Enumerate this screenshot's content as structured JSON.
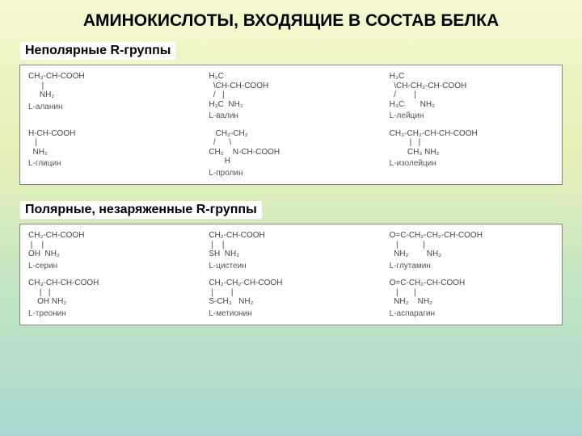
{
  "title": "АМИНОКИСЛОТЫ, ВХОДЯЩИЕ В СОСТАВ БЕЛКА",
  "section1": {
    "heading": "Неполярные R-группы",
    "row1": {
      "m1": {
        "line1": "CH₃-CH-COOH",
        "line2": "      |",
        "line3": "     NH₂",
        "label": "L-аланин"
      },
      "m2": {
        "line1": "H₃C   ",
        "line2": "  \\CH-CH-COOH",
        "line3": "  /   |",
        "line4": "H₃C  NH₂",
        "label": "L-валин"
      },
      "m3": {
        "line1": "H₃C",
        "line2": "  \\CH-CH₂-CH-COOH",
        "line3": "  /        |",
        "line4": "H₃C       NH₂",
        "label": "L-лейцин"
      }
    },
    "row2": {
      "m1": {
        "line1": "H-CH-COOH",
        "line2": "   |",
        "line3": "  NH₂",
        "label": "L-глицин"
      },
      "m2": {
        "line1": "   CH₂-CH₂",
        "line2": "  /      \\",
        "line3": "CH₂    N-CH-COOH",
        "line4": "       H",
        "label": "L-пролин"
      },
      "m3": {
        "line1": "CH₃-CH₂-CH-CH-COOH",
        "line2": "         |   |",
        "line3": "        CH₃ NH₂",
        "label": "L-изолейцин"
      }
    }
  },
  "section2": {
    "heading": "Полярные, незаряженные R-группы",
    "row1": {
      "m1": {
        "line1": "CH₂-CH-COOH",
        "line2": " |    |",
        "line3": "OH  NH₂",
        "label": "L-серин"
      },
      "m2": {
        "line1": "CH₂-CH-COOH",
        "line2": " |    |",
        "line3": "SH  NH₂",
        "label": "L-цистеин"
      },
      "m3": {
        "line1": "O=C-CH₂-CH₂-CH-COOH",
        "line2": "   |           |",
        "line3": "  NH₂        NH₂",
        "label": "L-глутамин"
      }
    },
    "row2": {
      "m1": {
        "line1": "CH₃-CH-CH-COOH",
        "line2": "     |   |",
        "line3": "    OH NH₂",
        "label": "L-треонин"
      },
      "m2": {
        "line1": "CH₂-CH₂-CH-COOH",
        "line2": " |        |",
        "line3": "S-CH₃   NH₂",
        "label": "L-метионин"
      },
      "m3": {
        "line1": "O=C-CH₂-CH-COOH",
        "line2": "   |       |",
        "line3": "  NH₂    NH₂",
        "label": "L-аспарагин"
      }
    }
  },
  "colors": {
    "bg_top": "#f5f8d0",
    "bg_bottom": "#a8d8d0",
    "text": "#000000",
    "chem_text": "#555555",
    "chem_bg": "#ffffff"
  }
}
